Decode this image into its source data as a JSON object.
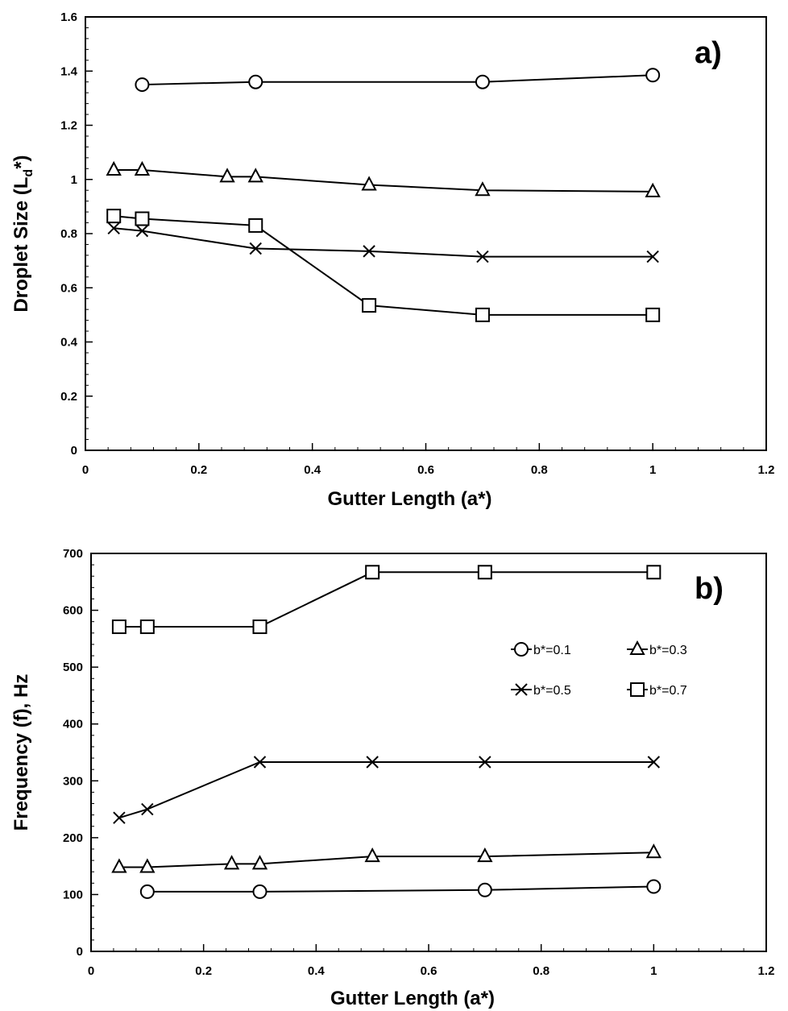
{
  "chart_data": [
    {
      "type": "line",
      "panel_label": "a)",
      "xlabel": "Gutter Length (a*)",
      "ylabel": "Droplet Size (L",
      "ylabel_sub": "d",
      "ylabel_tail": "*)",
      "xlim": [
        0,
        1.2
      ],
      "ylim": [
        0,
        1.6
      ],
      "x_ticks": [
        "0",
        "0.2",
        "0.4",
        "0.6",
        "0.8",
        "1",
        "1.2"
      ],
      "y_ticks": [
        "0",
        "0.2",
        "0.4",
        "0.6",
        "0.8",
        "1",
        "1.2",
        "1.4",
        "1.6"
      ],
      "x_tick_values": [
        0,
        0.2,
        0.4,
        0.6,
        0.8,
        1,
        1.2
      ],
      "y_tick_values": [
        0,
        0.2,
        0.4,
        0.6,
        0.8,
        1,
        1.2,
        1.4,
        1.6
      ],
      "grid": false,
      "legend": "none",
      "series": [
        {
          "name": "b*=0.1",
          "marker": "circle",
          "x": [
            0.1,
            0.3,
            0.7,
            1.0
          ],
          "y": [
            1.35,
            1.36,
            1.36,
            1.385
          ]
        },
        {
          "name": "b*=0.3",
          "marker": "triangle",
          "x": [
            0.05,
            0.1,
            0.25,
            0.3,
            0.5,
            0.7,
            1.0
          ],
          "y": [
            1.035,
            1.035,
            1.01,
            1.01,
            0.98,
            0.96,
            0.955
          ]
        },
        {
          "name": "b*=0.5",
          "marker": "x",
          "x": [
            0.05,
            0.1,
            0.3,
            0.5,
            0.7,
            1.0
          ],
          "y": [
            0.82,
            0.81,
            0.745,
            0.735,
            0.715,
            0.715
          ]
        },
        {
          "name": "b*=0.7",
          "marker": "square",
          "x": [
            0.05,
            0.1,
            0.3,
            0.5,
            0.7,
            1.0
          ],
          "y": [
            0.865,
            0.855,
            0.83,
            0.535,
            0.5,
            0.5
          ]
        }
      ]
    },
    {
      "type": "line",
      "panel_label": "b)",
      "xlabel": "Gutter Length (a*)",
      "ylabel": "Frequency (f), Hz",
      "xlim": [
        0,
        1.2
      ],
      "ylim": [
        0,
        700
      ],
      "x_ticks": [
        "0",
        "0.2",
        "0.4",
        "0.6",
        "0.8",
        "1",
        "1.2"
      ],
      "y_ticks": [
        "0",
        "100",
        "200",
        "300",
        "400",
        "500",
        "600",
        "700"
      ],
      "x_tick_values": [
        0,
        0.2,
        0.4,
        0.6,
        0.8,
        1,
        1.2
      ],
      "y_tick_values": [
        0,
        100,
        200,
        300,
        400,
        500,
        600,
        700
      ],
      "grid": false,
      "legend": "top-right",
      "legend_entries": [
        "b*=0.1",
        "b*=0.3",
        "b*=0.5",
        "b*=0.7"
      ],
      "series": [
        {
          "name": "b*=0.1",
          "marker": "circle",
          "x": [
            0.1,
            0.3,
            0.7,
            1.0
          ],
          "y": [
            105,
            105,
            108,
            114
          ]
        },
        {
          "name": "b*=0.3",
          "marker": "triangle",
          "x": [
            0.05,
            0.1,
            0.25,
            0.3,
            0.5,
            0.7,
            1.0
          ],
          "y": [
            148,
            148,
            154,
            154,
            167,
            167,
            174
          ]
        },
        {
          "name": "b*=0.5",
          "marker": "x",
          "x": [
            0.05,
            0.1,
            0.3,
            0.5,
            0.7,
            1.0
          ],
          "y": [
            235,
            250,
            333,
            333,
            333,
            333
          ]
        },
        {
          "name": "b*=0.7",
          "marker": "square",
          "x": [
            0.05,
            0.1,
            0.3,
            0.5,
            0.7,
            1.0
          ],
          "y": [
            571,
            571,
            571,
            667,
            667,
            667
          ]
        }
      ]
    }
  ]
}
